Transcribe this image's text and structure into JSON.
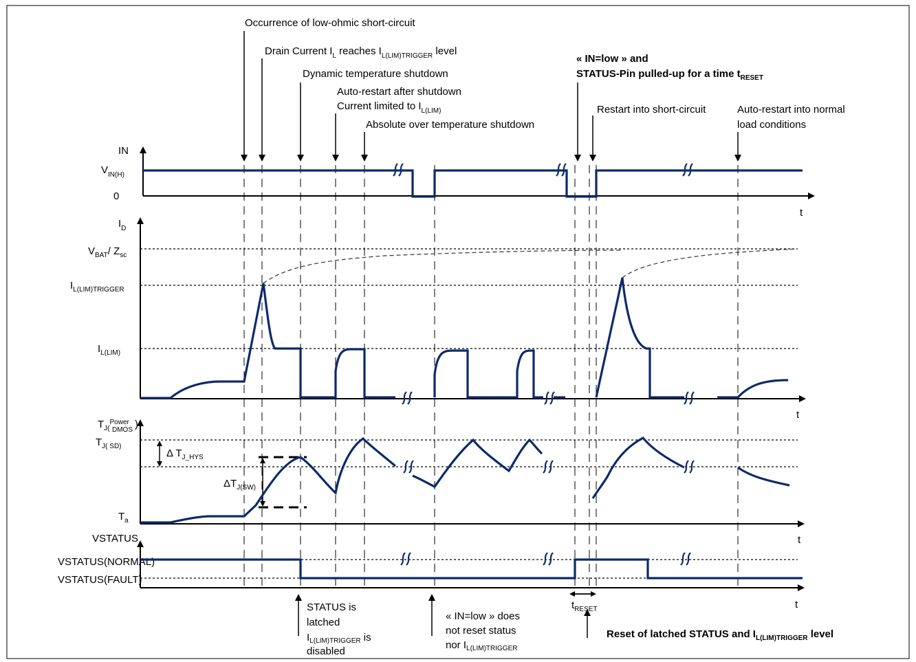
{
  "annotations": {
    "short_circuit": "Occurrence of low-ohmic short-circuit",
    "drain_current": [
      "Drain Current I",
      "L",
      " reaches I",
      "L(LIM)TRIGGER",
      " level"
    ],
    "dyn_shutdown": "Dynamic temperature shutdown",
    "auto_restart_1": "Auto-restart after shutdown",
    "current_limited": [
      "Current limited to I",
      "L(LIM)"
    ],
    "abs_shutdown": "Absolute over temperature shutdown",
    "in_low": "« IN=low » and",
    "status_pulled": [
      "STATUS-Pin pulled-up for a time t",
      "RESET"
    ],
    "restart_sc": "Restart into short-circuit",
    "auto_restart_normal_1": "Auto-restart into normal",
    "auto_restart_normal_2": "load conditions",
    "status_latched_1": "STATUS is",
    "status_latched_2": "latched",
    "trigger_disabled": [
      "I",
      "L(LIM)TRIGGER",
      " is"
    ],
    "disabled": "disabled",
    "in_low_note_1": "« IN=low » does",
    "in_low_note_2": "not reset status",
    "in_low_note_3": [
      "nor I",
      "L(LIM)TRIGGER"
    ],
    "t_reset": [
      "t",
      "RESET"
    ],
    "reset_latched": [
      "Reset of latched STATUS and I",
      "L(LIM)TRIGGER",
      " level"
    ]
  },
  "axes": {
    "in": {
      "title": "IN",
      "vinh": [
        "V",
        "IN(H)"
      ],
      "zero": "0",
      "t": "t"
    },
    "id": {
      "title": [
        "I",
        "D"
      ],
      "vbat": [
        "V",
        "BAT",
        "/ Z",
        "sc"
      ],
      "trigger": [
        "I",
        "L(LIM)TRIGGER"
      ],
      "lim": [
        "I",
        "L(LIM)"
      ],
      "t": "t"
    },
    "tj": {
      "title": [
        "T",
        "J(",
        "Power",
        "DMOS",
        ")"
      ],
      "tjsd": [
        "T",
        "J( SD)"
      ],
      "hys": [
        "Δ T",
        "J_HYS"
      ],
      "sw": [
        "ΔT",
        "J(SW)"
      ],
      "ta": [
        "T",
        "a"
      ],
      "t": "t"
    },
    "status": {
      "title": "VSTATUS",
      "normal": "VSTATUS(NORMAL)",
      "fault": "VSTATUS(FAULT)",
      "t": "t"
    }
  }
}
